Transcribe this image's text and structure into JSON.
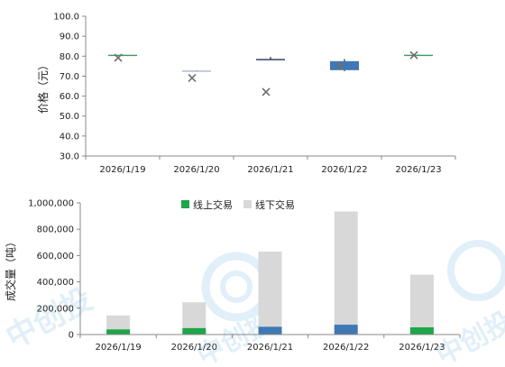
{
  "chart_data": [
    {
      "type": "candlestick",
      "categories": [
        "2026/1/19",
        "2026/1/20",
        "2026/1/21",
        "2026/1/22",
        "2026/1/23"
      ],
      "ylabel": "价格（元）",
      "ylim": [
        30.0,
        100.0
      ],
      "yticks": [
        "30.0",
        "40.0",
        "50.0",
        "60.0",
        "70.0",
        "80.0",
        "90.0",
        "100.0"
      ],
      "boxes": [
        {
          "open": 80.5,
          "close": 80.7,
          "high": 80.8,
          "low": 80.4,
          "color": "#3a9a5c"
        },
        {
          "open": 72.6,
          "close": 72.8,
          "high": 72.9,
          "low": 72.5,
          "color": "#aab7c4"
        },
        {
          "open": 78.4,
          "close": 78.6,
          "high": 79.6,
          "low": 78.3,
          "color": "#1f3b57"
        },
        {
          "open": 73.0,
          "close": 77.5,
          "high": 78.5,
          "low": 72.5,
          "color": "#3f78b4"
        },
        {
          "open": 80.5,
          "close": 80.7,
          "high": 80.8,
          "low": 80.4,
          "color": "#3a9a5c"
        }
      ],
      "avg_markers": [
        79.2,
        69.1,
        62.1,
        75.2,
        80.5
      ],
      "marker_color": "#6e6e6e",
      "grid": false
    },
    {
      "type": "bar",
      "stacked": true,
      "categories": [
        "2026/1/19",
        "2026/1/20",
        "2026/1/21",
        "2026/1/22",
        "2026/1/23"
      ],
      "ylabel": "成交量（吨）",
      "ylim": [
        0,
        1000000
      ],
      "yticks": [
        "0",
        "200,000",
        "400,000",
        "600,000",
        "800,000",
        "1,000,000"
      ],
      "legend_position": "top",
      "series": [
        {
          "name": "线上交易",
          "values": [
            40000,
            50000,
            60000,
            75000,
            55000
          ],
          "colors": [
            "#1fa54a",
            "#1fa54a",
            "#3f78b4",
            "#3f78b4",
            "#1fa54a"
          ]
        },
        {
          "name": "线下交易",
          "values": [
            105000,
            195000,
            570000,
            860000,
            400000
          ],
          "color": "#d8d8d8"
        }
      ],
      "legend_colors": [
        "#1fa54a",
        "#d8d8d8"
      ],
      "grid": false
    }
  ],
  "watermark": {
    "text": "中创投",
    "color": "#a9d3ec"
  }
}
